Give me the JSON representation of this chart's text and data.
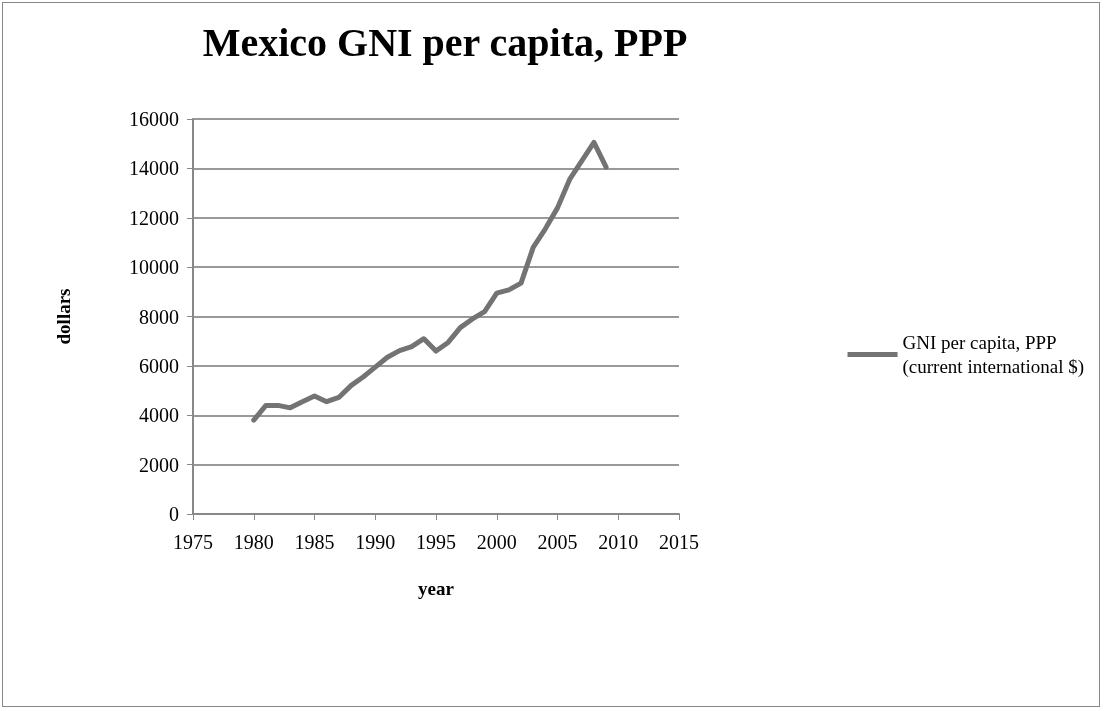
{
  "chart_data": {
    "type": "line",
    "title": "Mexico GNI per capita, PPP",
    "xlabel": "year",
    "ylabel": "dollars",
    "x": [
      1980,
      1981,
      1982,
      1983,
      1984,
      1985,
      1986,
      1987,
      1988,
      1989,
      1990,
      1991,
      1992,
      1993,
      1994,
      1995,
      1996,
      1997,
      1998,
      1999,
      2000,
      2001,
      2002,
      2003,
      2004,
      2005,
      2006,
      2007,
      2008,
      2009
    ],
    "series": [
      {
        "name": "GNI per capita, PPP (current international $)",
        "color": "#737373",
        "values": [
          3800,
          4400,
          4400,
          4300,
          4550,
          4780,
          4550,
          4720,
          5200,
          5550,
          5950,
          6350,
          6620,
          6780,
          7100,
          6600,
          6950,
          7550,
          7900,
          8200,
          8950,
          9080,
          9350,
          10800,
          11550,
          12400,
          13550,
          14300,
          15050,
          14050
        ]
      }
    ],
    "xlim": [
      1975,
      2015
    ],
    "xticks": [
      1975,
      1980,
      1985,
      1990,
      1995,
      2000,
      2005,
      2010,
      2015
    ],
    "ylim": [
      0,
      16000
    ],
    "yticks": [
      0,
      2000,
      4000,
      6000,
      8000,
      10000,
      12000,
      14000,
      16000
    ],
    "grid": "y",
    "legend": "right",
    "marker": "none",
    "line_style": "solid"
  }
}
